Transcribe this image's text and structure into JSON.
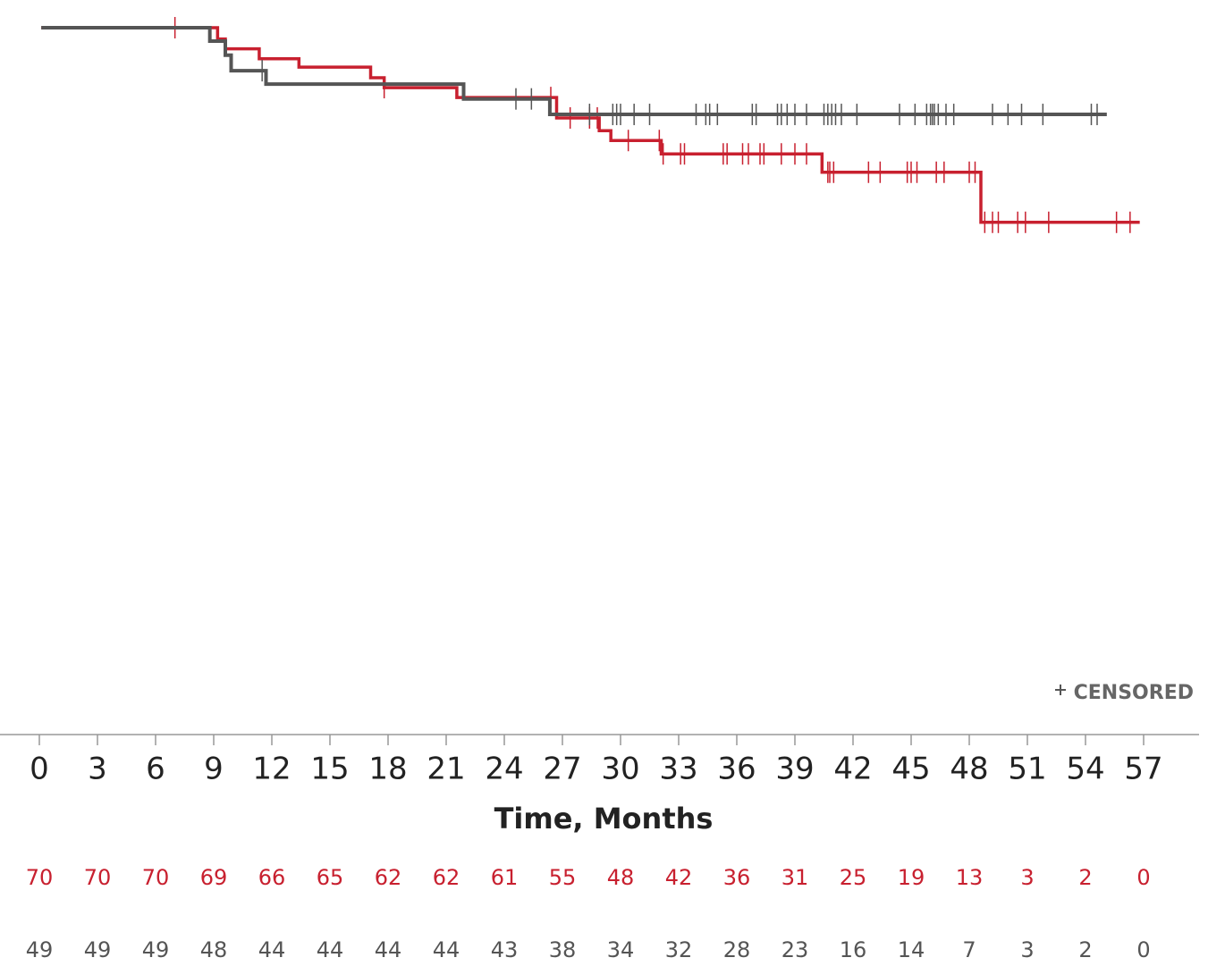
{
  "chart_data": {
    "type": "step",
    "x_label": "Time, Months",
    "legend_censored": "CENSORED",
    "xlim": [
      0,
      57
    ],
    "ylim": [
      0,
      100
    ],
    "xticks": [
      0,
      3,
      6,
      9,
      12,
      15,
      18,
      21,
      24,
      27,
      30,
      33,
      36,
      39,
      42,
      45,
      48,
      51,
      54,
      57
    ],
    "series": [
      {
        "color": "#c8202f",
        "x": [
          0.1,
          9.2,
          9.6,
          11.35,
          13.4,
          17.1,
          17.8,
          21.55,
          26.7,
          28.9,
          29.5,
          32.1,
          40.4,
          48.6,
          56.8
        ],
        "values": [
          100,
          98.4,
          97.0,
          95.6,
          94.4,
          92.9,
          91.5,
          90.1,
          87.2,
          85.4,
          84.0,
          82.1,
          79.5,
          72.4,
          72.4
        ],
        "censored": [
          7.0,
          17.8,
          26.4,
          27.4,
          28.4,
          28.8,
          30.4,
          32.0,
          32.2,
          33.1,
          33.3,
          35.3,
          35.5,
          36.3,
          36.6,
          37.2,
          37.4,
          38.3,
          39.0,
          39.6,
          40.7,
          40.8,
          41.0,
          42.8,
          43.4,
          44.8,
          45.0,
          45.3,
          46.3,
          46.7,
          48.0,
          48.3,
          48.8,
          49.2,
          49.5,
          50.5,
          50.9,
          52.1,
          55.6,
          56.3
        ],
        "at_risk": [
          70,
          70,
          70,
          69,
          66,
          65,
          62,
          62,
          61,
          55,
          48,
          42,
          36,
          31,
          25,
          19,
          13,
          3,
          2,
          0
        ]
      },
      {
        "color": "#555555",
        "x": [
          0.1,
          8.8,
          9.6,
          9.9,
          11.7,
          21.9,
          26.35,
          55.1
        ],
        "values": [
          100,
          98.1,
          96.1,
          93.9,
          92.0,
          89.9,
          87.7,
          87.7
        ],
        "censored": [
          11.5,
          24.6,
          25.4,
          28.4,
          29.6,
          29.8,
          30.0,
          30.7,
          31.5,
          33.9,
          34.4,
          34.6,
          35.0,
          36.8,
          37.0,
          38.1,
          38.3,
          38.6,
          39.0,
          39.6,
          40.5,
          40.7,
          40.9,
          41.1,
          41.4,
          42.2,
          44.4,
          45.2,
          45.8,
          46.0,
          46.1,
          46.2,
          46.4,
          46.8,
          47.2,
          49.2,
          50.0,
          50.7,
          51.8,
          54.3,
          54.6
        ],
        "at_risk": [
          49,
          49,
          49,
          48,
          44,
          44,
          44,
          44,
          43,
          38,
          34,
          32,
          28,
          23,
          16,
          14,
          7,
          3,
          2,
          0
        ]
      }
    ]
  }
}
